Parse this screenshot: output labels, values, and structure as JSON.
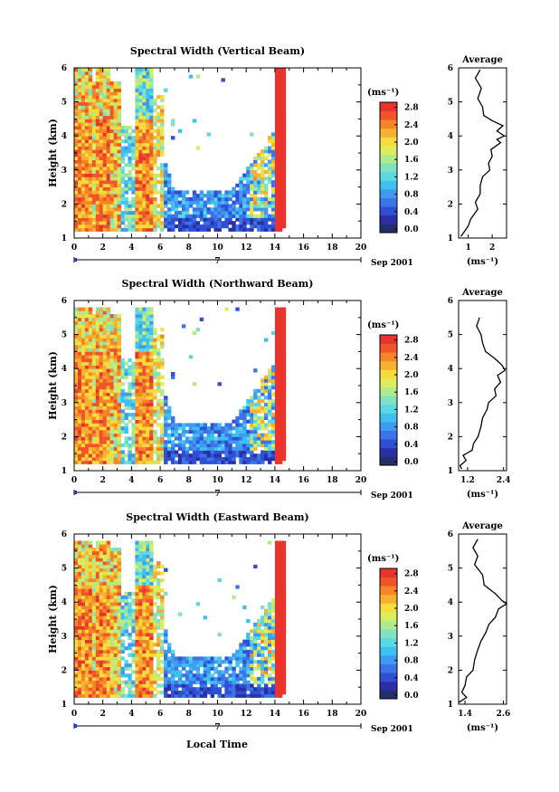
{
  "figure": {
    "x_axis_title": "Local Time",
    "date_label": "Sep 2001",
    "day_marker": "7"
  },
  "colorbar_ticks": [
    "2.8",
    "2.4",
    "2.0",
    "1.6",
    "1.2",
    "0.8",
    "0.4",
    "0.0"
  ],
  "colorbar_unit": "(ms⁻¹)",
  "chart_data": [
    {
      "type": "heatmap",
      "title": "Spectral Width (Vertical Beam)",
      "ylabel": "Height (km)",
      "xlabel": "Local Time",
      "x_ticks": [
        "0",
        "2",
        "4",
        "6",
        "8",
        "10",
        "12",
        "14",
        "16",
        "18",
        "20"
      ],
      "y_ticks": [
        "1",
        "2",
        "3",
        "4",
        "5",
        "6"
      ],
      "xlim": [
        0,
        20
      ],
      "ylim": [
        1,
        6
      ],
      "colorbar": {
        "label": "(ms⁻¹)",
        "range": [
          0.0,
          2.8
        ]
      },
      "average_profile": {
        "title": "Average",
        "xlabel": "(ms⁻¹)",
        "x_ticks": [
          "1",
          "2"
        ],
        "xlim": [
          0.6,
          2.6
        ],
        "points": [
          [
            1.5,
            5.95
          ],
          [
            1.3,
            5.7
          ],
          [
            1.55,
            5.4
          ],
          [
            1.4,
            5.1
          ],
          [
            1.6,
            4.85
          ],
          [
            1.65,
            4.6
          ],
          [
            2.0,
            4.45
          ],
          [
            2.45,
            4.3
          ],
          [
            2.2,
            4.15
          ],
          [
            2.5,
            4.0
          ],
          [
            2.2,
            3.9
          ],
          [
            2.35,
            3.8
          ],
          [
            1.95,
            3.6
          ],
          [
            2.0,
            3.4
          ],
          [
            1.85,
            3.2
          ],
          [
            1.9,
            3.0
          ],
          [
            1.6,
            2.8
          ],
          [
            1.5,
            2.55
          ],
          [
            1.5,
            2.3
          ],
          [
            1.3,
            2.05
          ],
          [
            1.4,
            1.85
          ],
          [
            1.1,
            1.55
          ],
          [
            1.0,
            1.35
          ],
          [
            0.8,
            1.15
          ],
          [
            0.7,
            1.05
          ]
        ]
      }
    },
    {
      "type": "heatmap",
      "title": "Spectral Width (Northward Beam)",
      "ylabel": "Height (km)",
      "xlabel": "Local Time",
      "x_ticks": [
        "0",
        "2",
        "4",
        "6",
        "8",
        "10",
        "12",
        "14",
        "16",
        "18",
        "20"
      ],
      "y_ticks": [
        "1",
        "2",
        "3",
        "4",
        "5",
        "6"
      ],
      "xlim": [
        0,
        20
      ],
      "ylim": [
        1,
        6
      ],
      "colorbar": {
        "label": "(ms⁻¹)",
        "range": [
          0.0,
          2.8
        ]
      },
      "average_profile": {
        "title": "Average",
        "xlabel": "(ms⁻¹)",
        "x_ticks": [
          "1.2",
          "2.4"
        ],
        "xlim": [
          0.9,
          2.5
        ],
        "points": [
          [
            1.6,
            5.5
          ],
          [
            1.5,
            5.25
          ],
          [
            1.65,
            5.0
          ],
          [
            1.7,
            4.75
          ],
          [
            1.8,
            4.5
          ],
          [
            2.1,
            4.3
          ],
          [
            2.35,
            4.1
          ],
          [
            2.45,
            3.95
          ],
          [
            2.2,
            3.8
          ],
          [
            2.3,
            3.6
          ],
          [
            2.1,
            3.4
          ],
          [
            2.15,
            3.2
          ],
          [
            1.9,
            3.0
          ],
          [
            1.85,
            2.8
          ],
          [
            1.7,
            2.55
          ],
          [
            1.65,
            2.3
          ],
          [
            1.55,
            2.0
          ],
          [
            1.4,
            1.8
          ],
          [
            1.35,
            1.6
          ],
          [
            1.05,
            1.45
          ],
          [
            1.15,
            1.3
          ],
          [
            0.95,
            1.15
          ],
          [
            1.0,
            1.05
          ]
        ]
      }
    },
    {
      "type": "heatmap",
      "title": "Spectral Width (Eastward Beam)",
      "ylabel": "Height (km)",
      "xlabel": "Local Time",
      "x_ticks": [
        "0",
        "2",
        "4",
        "6",
        "8",
        "10",
        "12",
        "14",
        "16",
        "18",
        "20"
      ],
      "y_ticks": [
        "1",
        "2",
        "3",
        "4",
        "5",
        "6"
      ],
      "xlim": [
        0,
        20
      ],
      "ylim": [
        1,
        6
      ],
      "colorbar": {
        "label": "(ms⁻¹)",
        "range": [
          0.0,
          2.8
        ]
      },
      "average_profile": {
        "title": "Average",
        "xlabel": "(ms⁻¹)",
        "x_ticks": [
          "1.4",
          "2.6"
        ],
        "xlim": [
          1.2,
          2.7
        ],
        "points": [
          [
            1.8,
            5.85
          ],
          [
            1.65,
            5.6
          ],
          [
            1.8,
            5.35
          ],
          [
            1.7,
            5.1
          ],
          [
            1.95,
            4.8
          ],
          [
            2.0,
            4.5
          ],
          [
            2.35,
            4.25
          ],
          [
            2.55,
            4.05
          ],
          [
            2.7,
            3.95
          ],
          [
            2.45,
            3.8
          ],
          [
            2.35,
            3.55
          ],
          [
            2.15,
            3.35
          ],
          [
            2.05,
            3.1
          ],
          [
            1.9,
            2.85
          ],
          [
            1.8,
            2.6
          ],
          [
            1.7,
            2.3
          ],
          [
            1.65,
            2.0
          ],
          [
            1.45,
            1.8
          ],
          [
            1.4,
            1.55
          ],
          [
            1.3,
            1.35
          ],
          [
            1.45,
            1.2
          ],
          [
            1.2,
            1.05
          ]
        ]
      }
    }
  ]
}
